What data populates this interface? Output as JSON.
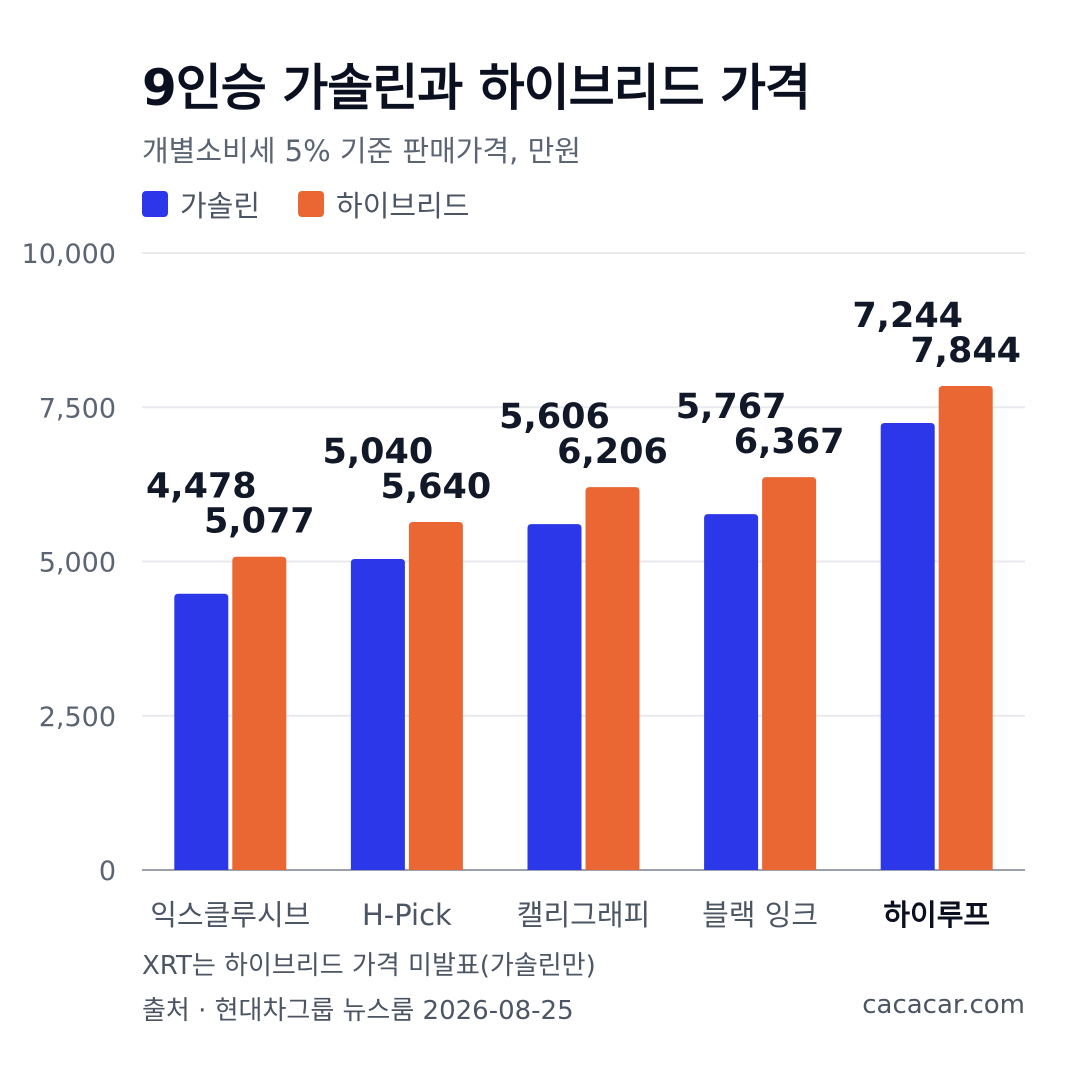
{
  "title": "9인승 가솔린과 하이브리드 가격",
  "subtitle": "개별소비세 5% 기준 판매가격, 만원",
  "colors": {
    "gasoline": "#2b37e8",
    "hybrid": "#ea6734",
    "grid": "#e8eaee",
    "axis": "#9aa1ac"
  },
  "chart_data": {
    "type": "bar",
    "categories": [
      "익스클루시브",
      "H-Pick",
      "캘리그래피",
      "블랙 잉크",
      "하이루프"
    ],
    "category_bold": [
      false,
      false,
      false,
      false,
      true
    ],
    "series": [
      {
        "name": "가솔린",
        "values": [
          4478,
          5040,
          5606,
          5767,
          7244
        ],
        "labels": [
          "4,478",
          "5,040",
          "5,606",
          "5,767",
          "7,244"
        ]
      },
      {
        "name": "하이브리드",
        "values": [
          5077,
          5640,
          6206,
          6367,
          7844
        ],
        "labels": [
          "5,077",
          "5,640",
          "6,206",
          "6,367",
          "7,844"
        ]
      }
    ],
    "ylim": [
      0,
      10000
    ],
    "yticks": [
      0,
      2500,
      5000,
      7500,
      10000
    ],
    "ytick_labels": [
      "0",
      "2,500",
      "5,000",
      "7,500",
      "10,000"
    ],
    "grid": true,
    "legend_position": "top-left"
  },
  "footnote": "XRT는 하이브리드 가격 미발표(가솔린만)",
  "source": "출처 · 현대차그룹 뉴스룸 2026-08-25",
  "site": "cacacar.com"
}
